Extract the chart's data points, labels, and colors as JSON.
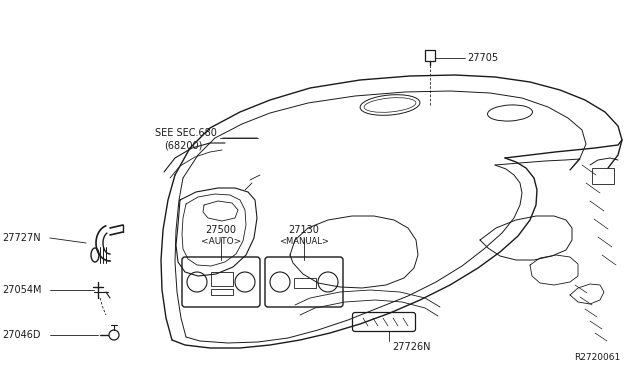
{
  "background_color": "#ffffff",
  "fig_width": 6.4,
  "fig_height": 3.72,
  "dpi": 100,
  "line_color": "#1a1a1a",
  "text_color": "#1a1a1a",
  "ref_code": "R2720061",
  "label_27705": "27705",
  "label_27727N": "27727N",
  "label_27054M": "27054M",
  "label_27046D": "27046D",
  "label_27500": "27500",
  "label_27500b": "<AUTO>",
  "label_27130": "27130",
  "label_27130b": "<MANUAL>",
  "label_27726N": "27726N",
  "label_see": "SEE SEC.680",
  "label_see2": "(68200)"
}
